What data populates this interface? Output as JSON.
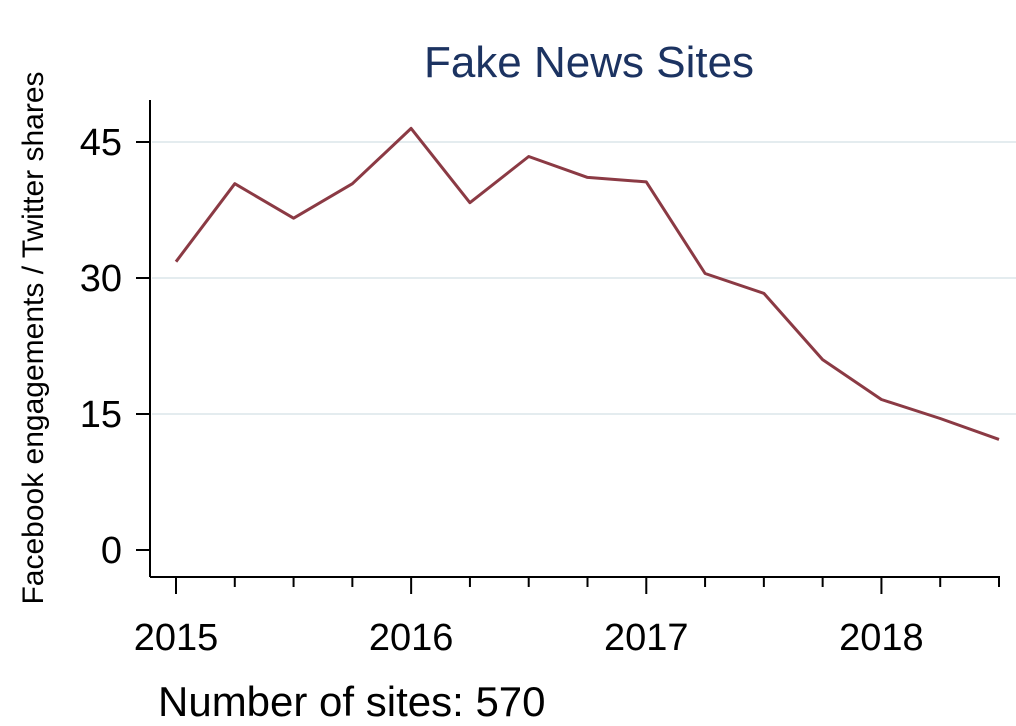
{
  "chart_data": {
    "type": "line",
    "title": "Fake News Sites",
    "xlabel": "",
    "ylabel": "Facebook engagements / Twitter shares",
    "note": "Number of sites: 570",
    "xlim": [
      2015,
      2018.5
    ],
    "ylim": [
      0,
      45
    ],
    "y_ticks": [
      0,
      15,
      30,
      45
    ],
    "x_major_ticks": [
      2015,
      2016,
      2017,
      2018
    ],
    "x_minor_ticks": [
      2015.25,
      2015.5,
      2015.75,
      2016.25,
      2016.5,
      2016.75,
      2017.25,
      2017.5,
      2017.75,
      2018.25,
      2018.5
    ],
    "x_tick_labels": [
      "2015",
      "2016",
      "2017",
      "2018"
    ],
    "grid": true,
    "line_color": "#8b3a44",
    "grid_color": "#e4ecef",
    "series": [
      {
        "x": [
          2015,
          2015.25,
          2015.5,
          2015.75,
          2016,
          2016.25,
          2016.5,
          2016.75,
          2017,
          2017.25,
          2017.5,
          2017.75,
          2018,
          2018.25,
          2018.5
        ],
        "y": [
          31.8,
          40.4,
          36.6,
          40.4,
          46.5,
          38.3,
          43.4,
          41.1,
          40.6,
          30.5,
          28.3,
          21.0,
          16.6,
          14.5,
          12.2
        ]
      }
    ]
  }
}
